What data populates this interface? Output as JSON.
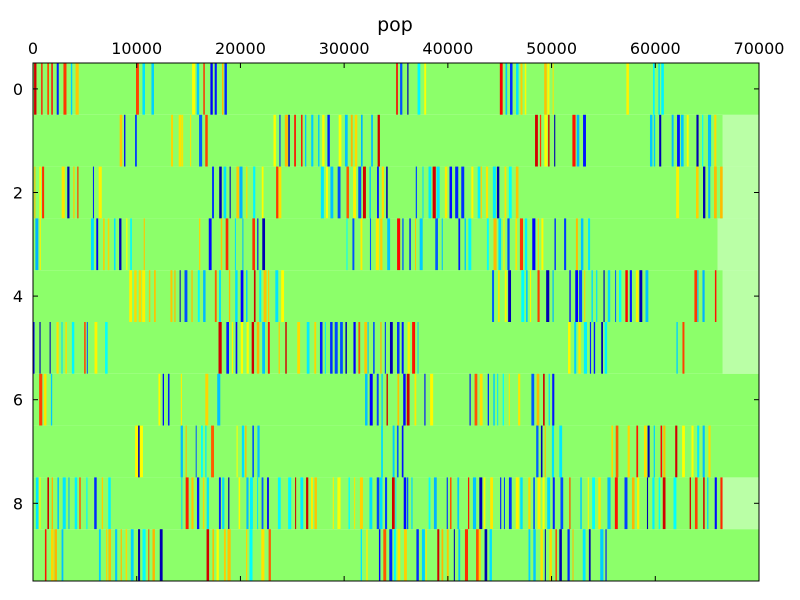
{
  "chart_data": {
    "type": "heatmap",
    "title": "pop",
    "xlabel": "",
    "ylabel": "",
    "x_tick_position": "top",
    "xlim": [
      0,
      70000
    ],
    "ylim": [
      9.5,
      -0.5
    ],
    "x_ticks": [
      0,
      10000,
      20000,
      30000,
      40000,
      50000,
      60000,
      70000
    ],
    "x_tick_labels": [
      "0",
      "10000",
      "20000",
      "30000",
      "40000",
      "50000",
      "60000",
      "70000"
    ],
    "y_ticks": [
      0,
      2,
      4,
      6,
      8
    ],
    "y_tick_labels": [
      "0",
      "2",
      "4",
      "6",
      "8"
    ],
    "colormap": "jet",
    "background_color": "#8cff6a",
    "rows": [
      {
        "row": 0,
        "end": 70000,
        "stripe_ranges": [
          [
            0,
            4500
          ],
          [
            9800,
            11800
          ],
          [
            15200,
            19000
          ],
          [
            34800,
            38000
          ],
          [
            44800,
            47800
          ],
          [
            49000,
            50500
          ],
          [
            55000,
            57500
          ],
          [
            59500,
            61000
          ]
        ]
      },
      {
        "row": 1,
        "end": 66500,
        "stripe_ranges": [
          [
            8200,
            10200
          ],
          [
            13200,
            17000
          ],
          [
            23000,
            33500
          ],
          [
            48200,
            50600
          ],
          [
            51800,
            54000
          ],
          [
            58800,
            66000
          ]
        ]
      },
      {
        "row": 2,
        "end": 66500,
        "stripe_ranges": [
          [
            0,
            1200
          ],
          [
            2500,
            6800
          ],
          [
            17200,
            24200
          ],
          [
            27500,
            34500
          ],
          [
            36800,
            46800
          ],
          [
            61700,
            66500
          ]
        ]
      },
      {
        "row": 3,
        "end": 66000,
        "stripe_ranges": [
          [
            0,
            1500
          ],
          [
            5500,
            11000
          ],
          [
            15200,
            22600
          ],
          [
            30200,
            50500
          ],
          [
            51000,
            53800
          ]
        ]
      },
      {
        "row": 4,
        "end": 66500,
        "stripe_ranges": [
          [
            8500,
            12000
          ],
          [
            13000,
            24200
          ],
          [
            44200,
            54600
          ],
          [
            54800,
            59500
          ],
          [
            63500,
            66500
          ]
        ]
      },
      {
        "row": 5,
        "end": 66500,
        "stripe_ranges": [
          [
            0,
            7200
          ],
          [
            17800,
            37500
          ],
          [
            51500,
            55500
          ],
          [
            62000,
            64200
          ]
        ]
      },
      {
        "row": 6,
        "end": 70000,
        "stripe_ranges": [
          [
            500,
            2000
          ],
          [
            10800,
            14500
          ],
          [
            16500,
            18000
          ],
          [
            30000,
            34500
          ],
          [
            35000,
            38500
          ],
          [
            42000,
            51000
          ]
        ]
      },
      {
        "row": 7,
        "end": 70000,
        "stripe_ranges": [
          [
            9800,
            10500
          ],
          [
            14000,
            17500
          ],
          [
            19400,
            22500
          ],
          [
            33500,
            36000
          ],
          [
            48200,
            51000
          ],
          [
            55500,
            65500
          ]
        ]
      },
      {
        "row": 8,
        "end": 66500,
        "stripe_ranges": [
          [
            0,
            7500
          ],
          [
            14000,
            24000
          ],
          [
            24500,
            37000
          ],
          [
            38000,
            58500
          ],
          [
            59000,
            66500
          ]
        ]
      },
      {
        "row": 9,
        "end": 70000,
        "stripe_ranges": [
          [
            0,
            3000
          ],
          [
            6200,
            12500
          ],
          [
            16500,
            23000
          ],
          [
            31500,
            44500
          ],
          [
            46500,
            55500
          ]
        ]
      }
    ]
  }
}
